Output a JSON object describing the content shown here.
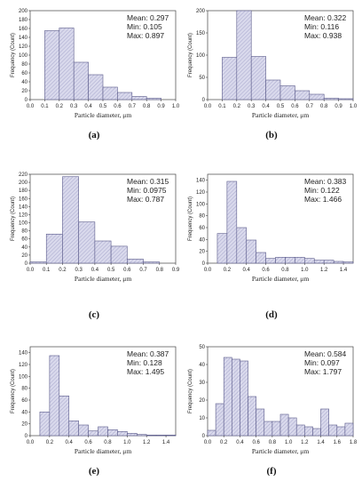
{
  "style": {
    "bar_fill": "#d9d9ec",
    "bar_hatch": "#9c9cc6",
    "bar_stroke": "#5a5a8a",
    "axis": "#444444"
  },
  "chart_data": [
    {
      "type": "bar",
      "panel": "(a)",
      "xlabel": "Particle diameter, μm",
      "ylabel": "Frequency (Count)",
      "xlim": [
        0.0,
        1.0
      ],
      "ylim": [
        0,
        200
      ],
      "xticks": [
        "0.0",
        "0.1",
        "0.2",
        "0.3",
        "0.4",
        "0.5",
        "0.6",
        "0.7",
        "0.8",
        "0.9",
        "1.0"
      ],
      "yticks": [
        "0",
        "20",
        "40",
        "60",
        "80",
        "100",
        "120",
        "140",
        "160",
        "180",
        "200"
      ],
      "bin_edges": [
        0.1,
        0.2,
        0.3,
        0.4,
        0.5,
        0.6,
        0.7,
        0.8,
        0.9
      ],
      "values": [
        155,
        161,
        84,
        56,
        28,
        16,
        7,
        3
      ],
      "stats": [
        "Mean: 0.297",
        "Min: 0.105",
        "Max: 0.897"
      ]
    },
    {
      "type": "bar",
      "panel": "(b)",
      "xlabel": "Particle diameter, μm",
      "ylabel": "Frequency (Count)",
      "xlim": [
        0.0,
        1.0
      ],
      "ylim": [
        0,
        200
      ],
      "xticks": [
        "0.0",
        "0.1",
        "0.2",
        "0.3",
        "0.4",
        "0.5",
        "0.6",
        "0.7",
        "0.8",
        "0.9",
        "1.0"
      ],
      "yticks": [
        "0",
        "50",
        "100",
        "150",
        "200"
      ],
      "bin_edges": [
        0.1,
        0.2,
        0.3,
        0.4,
        0.5,
        0.6,
        0.7,
        0.8,
        0.9,
        1.0
      ],
      "values": [
        95,
        200,
        97,
        44,
        31,
        20,
        12,
        3,
        2
      ],
      "stats": [
        "Mean: 0.322",
        "Min: 0.116",
        "Max: 0.938"
      ]
    },
    {
      "type": "bar",
      "panel": "(c)",
      "xlabel": "Particle diameter, μm",
      "ylabel": "Frequency (Count)",
      "xlim": [
        0.0,
        0.9
      ],
      "ylim": [
        0,
        220
      ],
      "xticks": [
        "0.0",
        "0.1",
        "0.2",
        "0.3",
        "0.4",
        "0.5",
        "0.6",
        "0.7",
        "0.8",
        "0.9"
      ],
      "yticks": [
        "0",
        "20",
        "40",
        "60",
        "80",
        "100",
        "120",
        "140",
        "160",
        "180",
        "200",
        "220"
      ],
      "bin_edges": [
        0.0,
        0.1,
        0.2,
        0.3,
        0.4,
        0.5,
        0.6,
        0.7,
        0.8
      ],
      "values": [
        3,
        72,
        214,
        102,
        55,
        42,
        10,
        3
      ],
      "stats": [
        "Mean: 0.315",
        "Min: 0.0975",
        "Max: 0.787"
      ]
    },
    {
      "type": "bar",
      "panel": "(d)",
      "xlabel": "Particle diameter, μm",
      "ylabel": "Frequency (Count)",
      "xlim": [
        0.0,
        1.5
      ],
      "ylim": [
        0,
        150
      ],
      "xticks": [
        "0.0",
        "0.2",
        "0.4",
        "0.6",
        "0.8",
        "1.0",
        "1.2",
        "1.4"
      ],
      "xtick_values": [
        0.0,
        0.2,
        0.4,
        0.6,
        0.8,
        1.0,
        1.2,
        1.4
      ],
      "yticks": [
        "0",
        "20",
        "40",
        "60",
        "80",
        "100",
        "120",
        "140"
      ],
      "ytick_values": [
        0,
        20,
        40,
        60,
        80,
        100,
        120,
        140
      ],
      "bin_edges": [
        0.1,
        0.2,
        0.3,
        0.4,
        0.5,
        0.6,
        0.7,
        0.8,
        0.9,
        1.0,
        1.1,
        1.2,
        1.3,
        1.4,
        1.5
      ],
      "values": [
        50,
        138,
        60,
        39,
        18,
        8,
        10,
        10,
        10,
        8,
        5,
        5,
        3,
        2
      ],
      "stats": [
        "Mean: 0.383",
        "Min: 0.122",
        "Max: 1.466"
      ]
    },
    {
      "type": "bar",
      "panel": "(e)",
      "xlabel": "Particle diameter, μm",
      "ylabel": "Frequency (Count)",
      "xlim": [
        0.0,
        1.5
      ],
      "ylim": [
        0,
        150
      ],
      "xticks": [
        "0.0",
        "0.2",
        "0.4",
        "0.6",
        "0.8",
        "1.0",
        "1.2",
        "1.4"
      ],
      "xtick_values": [
        0.0,
        0.2,
        0.4,
        0.6,
        0.8,
        1.0,
        1.2,
        1.4
      ],
      "yticks": [
        "0",
        "20",
        "40",
        "60",
        "80",
        "100",
        "120",
        "140"
      ],
      "ytick_values": [
        0,
        20,
        40,
        60,
        80,
        100,
        120,
        140
      ],
      "bin_edges": [
        0.1,
        0.2,
        0.3,
        0.4,
        0.5,
        0.6,
        0.7,
        0.8,
        0.9,
        1.0,
        1.1,
        1.2,
        1.3,
        1.4,
        1.5
      ],
      "values": [
        40,
        135,
        67,
        25,
        18,
        8,
        15,
        10,
        7,
        4,
        2,
        1,
        1,
        1
      ],
      "stats": [
        "Mean: 0.387",
        "Min: 0.128",
        "Max: 1.495"
      ]
    },
    {
      "type": "bar",
      "panel": "(f)",
      "xlabel": "Particle diameter, μm",
      "ylabel": "Frequency (Count)",
      "xlim": [
        0.0,
        1.8
      ],
      "ylim": [
        0,
        50
      ],
      "xticks": [
        "0.0",
        "0.2",
        "0.4",
        "0.6",
        "0.8",
        "1.0",
        "1.2",
        "1.4",
        "1.6",
        "1.8"
      ],
      "yticks": [
        "0",
        "10",
        "20",
        "30",
        "40",
        "50"
      ],
      "bin_edges": [
        0.0,
        0.1,
        0.2,
        0.3,
        0.4,
        0.5,
        0.6,
        0.7,
        0.8,
        0.9,
        1.0,
        1.1,
        1.2,
        1.3,
        1.4,
        1.5,
        1.6,
        1.7,
        1.8
      ],
      "values": [
        3,
        18,
        44,
        43,
        42,
        22,
        15,
        8,
        8,
        12,
        10,
        6,
        5,
        4,
        15,
        6,
        5,
        7
      ],
      "stats": [
        "Mean: 0.584",
        "Min: 0.097",
        "Max: 1.797"
      ]
    }
  ]
}
